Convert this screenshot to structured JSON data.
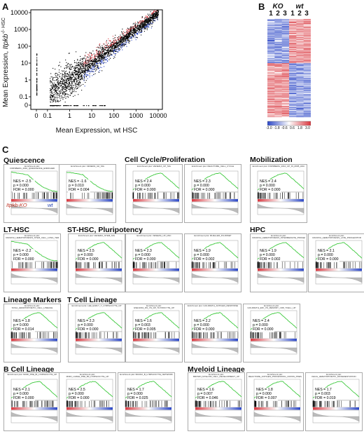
{
  "panels": {
    "a": "A",
    "b": "B",
    "c": "C"
  },
  "scatter": {
    "xlabel": "Mean Expression, wt HSC",
    "ylabel_prefix": "Mean Expression, ",
    "ylabel_gene": "Itpkb",
    "ylabel_suffix": "-/- HSC",
    "ticks": [
      "0",
      "0.1",
      "1",
      "10",
      "100",
      "1000",
      "10000"
    ],
    "tick_values": [
      0,
      0.1,
      1,
      10,
      100,
      1000,
      10000
    ],
    "colors": {
      "points": "#000000",
      "up": "#d9363e",
      "down": "#2b46c6"
    }
  },
  "heatmap": {
    "groups": [
      {
        "label": "KO",
        "cols": [
          "1",
          "2",
          "3"
        ]
      },
      {
        "label": "wt",
        "cols": [
          "1",
          "2",
          "3"
        ]
      }
    ],
    "scale_ticks": [
      "-3.0",
      "-1.8",
      "-0.6",
      "0.6",
      "1.8",
      "3.0"
    ],
    "colors": {
      "low": "#2b46c6",
      "mid": "#ffffff",
      "high": "#d9363e"
    }
  },
  "sections": {
    "quiescence": "Quiescence",
    "cell_cycle": "Cell Cycle/Proliferation",
    "mobilization": "Mobilization",
    "lt_hsc": "LT-HSC",
    "st_hsc": "ST-HSC, Pluripotency",
    "hpc": "HPC",
    "lineage": "Lineage Markers",
    "t_cell": "T Cell Lineage",
    "b_cell": "B Cell Lineage",
    "myeloid": "Myeloid Lineage"
  },
  "gsea_legend": {
    "ko": "Itpkb-KO",
    "wt": "wt"
  },
  "gsea": [
    {
      "title": "Enrichment plot: FORSBERG_2010_QUIESCENCE_ENRICHED",
      "nes": "NES = -2.5",
      "p": "p = 0.000",
      "fdr": "FDR = 0.000",
      "dir": "down"
    },
    {
      "title": "Enrichment plot: VENEZIA_G0_SIG",
      "nes": "NES = -1.6",
      "p": "p = 0.010",
      "fdr": "FDR = 0.004",
      "dir": "down"
    },
    {
      "title": "Enrichment plot: VENEZIA_CP_SIG",
      "nes": "NES = 2.4",
      "p": "p = 0.000",
      "fdr": "FDR = 0.000",
      "dir": "up"
    },
    {
      "title": "Enrichment plot: REACTOME_CELL_CYCLE",
      "nes": "NES = 2.3",
      "p": "p = 0.000",
      "fdr": "FDR = 0.000",
      "dir": "up"
    },
    {
      "title": "Enrichment plot: FORSBERG_2010_UP_IN_MOB_HSC",
      "nes": "NES = 2.4",
      "p": "p = 0.000",
      "fdr": "FDR = 0.000",
      "dir": "up"
    },
    {
      "title": "Enrichment plot: IVANOVA_HEMATOPOIESIS_STEM_CELL_LONG_TERM",
      "nes": "NES = -2.2",
      "p": "p = 0.000",
      "fdr": "FDR = 0.000",
      "dir": "down"
    },
    {
      "title": "Enrichment plot: VENEZIA_STEM_SIG",
      "nes": "NES = 2.5",
      "p": "p = 0.000",
      "fdr": "FDR = 0.000",
      "dir": "up"
    },
    {
      "title": "Enrichment plot: VENEZIA_UP_HSC",
      "nes": "NES = 2.3",
      "p": "p = 0.000",
      "fdr": "FDR = 0.000",
      "dir": "up"
    },
    {
      "title": "Enrichment plot: MUELLER_PLURINET",
      "nes": "NES = 1.9",
      "p": "p = 0.000",
      "fdr": "FDR = 0.002",
      "dir": "up"
    },
    {
      "title": "Enrichment plot: IVANOVA_HEMATOPOIESIS_INTERMEDIATE_PROGENITOR",
      "nes": "NES = 1.9",
      "p": "p = 0.000",
      "fdr": "FDR = 0.002",
      "dir": "up"
    },
    {
      "title": "Enrichment plot: IVANOVA_HEMATOPOIESIS_LATE_PROGENITOR",
      "nes": "NES = 2.1",
      "p": "p = 0.000",
      "fdr": "FDR = 0.000",
      "dir": "up"
    },
    {
      "title": "Enrichment plot: SOGA_HEMATOPOIETIC_CELL_LINEAGE",
      "nes": "NES = 1.8",
      "p": "p = 0.000",
      "fdr": "FDR = 0.014",
      "dir": "up"
    },
    {
      "title": "Enrichment plot: LEE_EARLY_T_LYMPHOCYTE_UP",
      "nes": "NES = 2.3",
      "p": "p = 0.000",
      "fdr": "FDR = 0.000",
      "dir": "up"
    },
    {
      "title": "Enrichment plot: GSE11961_DN_VS_DP_THYMOCYTE_UP",
      "nes": "NES = 1.6",
      "p": "p = 0.003",
      "fdr": "FDR = 0.005",
      "dir": "up"
    },
    {
      "title": "Enrichment plot: GOLDRATH_ANTIGEN_RESPONSE",
      "nes": "NES = 2.2",
      "p": "p = 0.000",
      "fdr": "FDR = 0.000",
      "dir": "up"
    },
    {
      "title": "Enrichment plot: GOLDRATH_EFF_VS_MEMORY_CD8_TCELL_UP",
      "nes": "NES = 2.4",
      "p": "p = 0.000",
      "fdr": "FDR = 0.000",
      "dir": "up"
    },
    {
      "title": "Enrichment plot: MORI_PRE_BI_LYMPHOCYTE_UP",
      "nes": "NES = 2.1",
      "p": "p = 0.000",
      "fdr": "FDR = 0.000",
      "dir": "up"
    },
    {
      "title": "Enrichment plot: MORI_LARGE_PRE_BII_LYMPHOCYTE_UP",
      "nes": "NES = 2.5",
      "p": "p = 0.000",
      "fdr": "FDR = 0.000",
      "dir": "up"
    },
    {
      "title": "Enrichment plot: BASSO_B_LYMPHOCYTE_NETWORK",
      "nes": "NES = 1.7",
      "p": "p = 0.000",
      "fdr": "FDR = 0.025",
      "dir": "up"
    },
    {
      "title": "Enrichment plot: BROWN_MYELOID_CELL_DEVELOPMENT_UP",
      "nes": "NES = 1.6",
      "p": "p = 0.007",
      "fdr": "FDR = 0.046",
      "dir": "up"
    },
    {
      "title": "Enrichment plot: REACTOME_ANTIGEN_PROCESSING_CROSS_PRESENTATION",
      "nes": "NES = 1.8",
      "p": "p = 0.000",
      "fdr": "FDR = 0.007",
      "dir": "up"
    },
    {
      "title": "Enrichment plot: KEGG_HEMATOPOIETIC_DIFFERENTIATION",
      "nes": "NES = 1.7",
      "p": "p = 0.003",
      "fdr": "FDR = 0.019",
      "dir": "up"
    }
  ]
}
